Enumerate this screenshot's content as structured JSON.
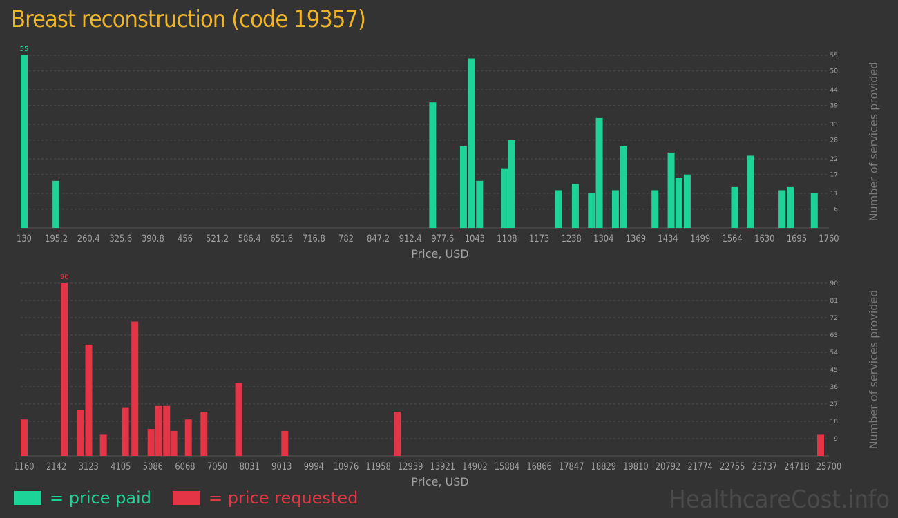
{
  "title": "Breast reconstruction (code 19357)",
  "colors": {
    "paid": "#1ed397",
    "requested": "#e33546",
    "title": "#f0b429",
    "axis_text": "#a0a0a0",
    "grid": "#4c4c4c"
  },
  "legend": {
    "paid": "= price paid",
    "requested": "= price requested"
  },
  "watermark": "HealthcareCost.info",
  "chart_data": [
    {
      "type": "bar",
      "series": [
        {
          "name": "price paid",
          "color": "#1ed397"
        }
      ],
      "xlabel": "Price, USD",
      "ylabel": "Number of services provided",
      "xlim": [
        130,
        1760
      ],
      "ylim": [
        0,
        55
      ],
      "x_ticks": [
        "130",
        "195.2",
        "260.4",
        "325.6",
        "390.8",
        "456",
        "521.2",
        "586.4",
        "651.6",
        "716.8",
        "782",
        "847.2",
        "912.4",
        "977.6",
        "1043",
        "1108",
        "1173",
        "1238",
        "1304",
        "1369",
        "1434",
        "1499",
        "1564",
        "1630",
        "1695",
        "1760"
      ],
      "y_ticks": [
        55,
        50,
        44,
        39,
        33,
        28,
        22,
        17,
        11,
        6
      ],
      "peak_label": "55",
      "x": [
        130,
        195.2,
        966,
        1029,
        1046,
        1062,
        1113,
        1128,
        1224,
        1258,
        1291,
        1307,
        1340,
        1356,
        1421,
        1454,
        1470,
        1487,
        1584,
        1616,
        1681,
        1698,
        1747
      ],
      "values": [
        55,
        15,
        40,
        26,
        54,
        15,
        19,
        28,
        12,
        14,
        11,
        35,
        12,
        26,
        12,
        24,
        16,
        17,
        13,
        23,
        12,
        13,
        11
      ]
    },
    {
      "type": "bar",
      "series": [
        {
          "name": "price requested",
          "color": "#e33546"
        }
      ],
      "xlabel": "Price, USD",
      "ylabel": "Number of services provided",
      "xlim": [
        1160,
        25700
      ],
      "ylim": [
        0,
        90
      ],
      "x_ticks": [
        "1160",
        "2142",
        "3123",
        "4105",
        "5086",
        "6068",
        "7050",
        "8031",
        "9013",
        "9994",
        "10976",
        "11958",
        "12939",
        "13921",
        "14902",
        "15884",
        "16866",
        "17847",
        "18829",
        "19810",
        "20792",
        "21774",
        "22755",
        "23737",
        "24718",
        "25700"
      ],
      "y_ticks": [
        90,
        81,
        72,
        63,
        54,
        45,
        36,
        27,
        18,
        9
      ],
      "peak_label": "90",
      "x": [
        1160,
        2400,
        2900,
        3150,
        3600,
        4280,
        4570,
        5070,
        5300,
        5550,
        5770,
        6220,
        6700,
        7770,
        9190,
        12660,
        25700
      ],
      "values": [
        19,
        90,
        24,
        58,
        11,
        25,
        70,
        14,
        26,
        26,
        13,
        19,
        23,
        38,
        13,
        23,
        11
      ]
    }
  ]
}
